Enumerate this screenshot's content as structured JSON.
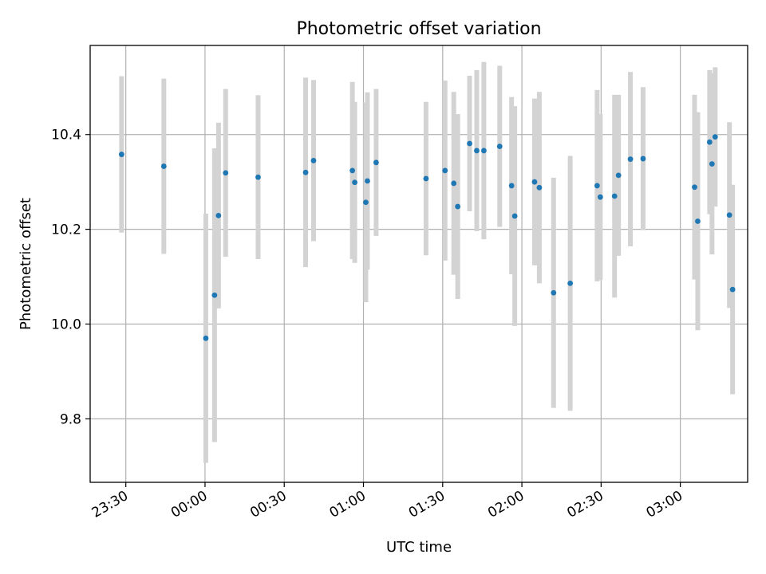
{
  "chart_data": {
    "type": "scatter",
    "title": "Photometric offset variation",
    "xlabel": "UTC time",
    "ylabel": "Photometric offset",
    "x_unit": "minutes relative to 00:00 UTC",
    "xlim": [
      -43.5,
      205.5
    ],
    "ylim": [
      9.666,
      10.588
    ],
    "yticks": [
      9.8,
      10.0,
      10.2,
      10.4
    ],
    "ytick_labels": [
      "9.8",
      "10.0",
      "10.2",
      "10.4"
    ],
    "xticks": [
      -30,
      0,
      30,
      60,
      90,
      120,
      150,
      180
    ],
    "xtick_labels": [
      "23:30",
      "00:00",
      "00:30",
      "01:00",
      "01:30",
      "02:00",
      "02:30",
      "03:00"
    ],
    "grid": true,
    "marker_color": "#1f77b4",
    "errorbar_color": "#d3d3d3",
    "points": [
      {
        "x": -31.6,
        "y": 10.358,
        "yerr": 0.165
      },
      {
        "x": -15.6,
        "y": 10.333,
        "yerr": 0.185
      },
      {
        "x": 0.3,
        "y": 9.97,
        "yerr": 0.263
      },
      {
        "x": 3.6,
        "y": 10.061,
        "yerr": 0.31
      },
      {
        "x": 5.1,
        "y": 10.229,
        "yerr": 0.196
      },
      {
        "x": 7.8,
        "y": 10.319,
        "yerr": 0.177
      },
      {
        "x": 20.1,
        "y": 10.31,
        "yerr": 0.173
      },
      {
        "x": 38.1,
        "y": 10.32,
        "yerr": 0.2
      },
      {
        "x": 41.1,
        "y": 10.345,
        "yerr": 0.17
      },
      {
        "x": 55.8,
        "y": 10.324,
        "yerr": 0.187
      },
      {
        "x": 56.7,
        "y": 10.299,
        "yerr": 0.17
      },
      {
        "x": 60.9,
        "y": 10.257,
        "yerr": 0.211
      },
      {
        "x": 61.5,
        "y": 10.302,
        "yerr": 0.187
      },
      {
        "x": 64.8,
        "y": 10.341,
        "yerr": 0.155
      },
      {
        "x": 83.7,
        "y": 10.307,
        "yerr": 0.162
      },
      {
        "x": 90.9,
        "y": 10.324,
        "yerr": 0.19
      },
      {
        "x": 94.2,
        "y": 10.297,
        "yerr": 0.193
      },
      {
        "x": 95.7,
        "y": 10.248,
        "yerr": 0.195
      },
      {
        "x": 100.2,
        "y": 10.381,
        "yerr": 0.143
      },
      {
        "x": 102.9,
        "y": 10.366,
        "yerr": 0.17
      },
      {
        "x": 105.6,
        "y": 10.366,
        "yerr": 0.187
      },
      {
        "x": 111.6,
        "y": 10.375,
        "yerr": 0.17
      },
      {
        "x": 116.1,
        "y": 10.292,
        "yerr": 0.187
      },
      {
        "x": 117.3,
        "y": 10.228,
        "yerr": 0.232
      },
      {
        "x": 124.8,
        "y": 10.3,
        "yerr": 0.176
      },
      {
        "x": 126.6,
        "y": 10.288,
        "yerr": 0.202
      },
      {
        "x": 132.0,
        "y": 10.066,
        "yerr": 0.243
      },
      {
        "x": 138.3,
        "y": 10.086,
        "yerr": 0.269
      },
      {
        "x": 148.5,
        "y": 10.292,
        "yerr": 0.202
      },
      {
        "x": 149.7,
        "y": 10.268,
        "yerr": 0.175
      },
      {
        "x": 155.1,
        "y": 10.27,
        "yerr": 0.214
      },
      {
        "x": 156.6,
        "y": 10.314,
        "yerr": 0.17
      },
      {
        "x": 161.1,
        "y": 10.348,
        "yerr": 0.184
      },
      {
        "x": 165.9,
        "y": 10.349,
        "yerr": 0.151
      },
      {
        "x": 185.4,
        "y": 10.289,
        "yerr": 0.195
      },
      {
        "x": 186.6,
        "y": 10.217,
        "yerr": 0.23
      },
      {
        "x": 191.1,
        "y": 10.384,
        "yerr": 0.152
      },
      {
        "x": 192.0,
        "y": 10.338,
        "yerr": 0.191
      },
      {
        "x": 193.2,
        "y": 10.395,
        "yerr": 0.147
      },
      {
        "x": 198.6,
        "y": 10.23,
        "yerr": 0.196
      },
      {
        "x": 199.8,
        "y": 10.073,
        "yerr": 0.221
      }
    ]
  }
}
